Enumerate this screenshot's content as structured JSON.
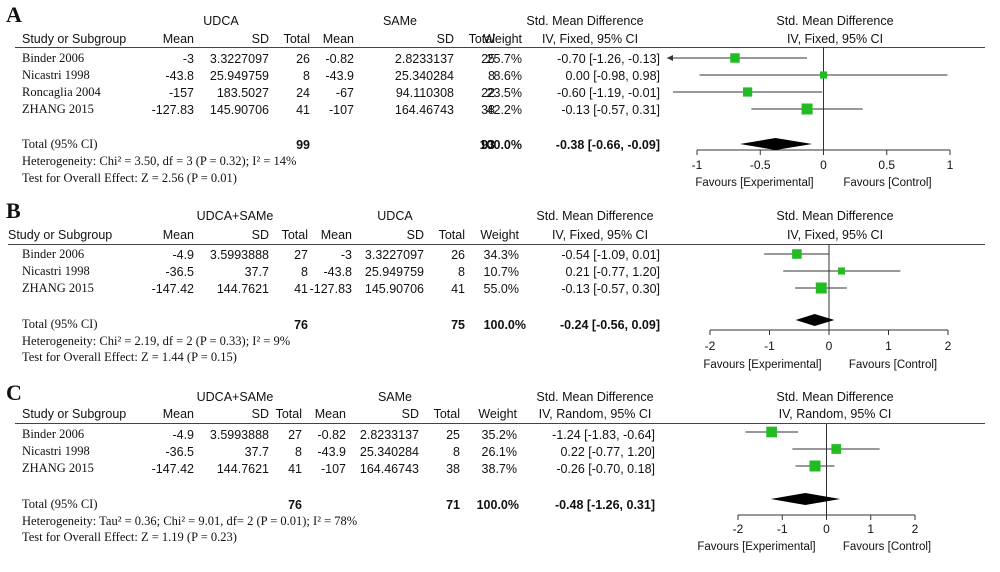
{
  "colors": {
    "square": "#22bb22",
    "diamond": "#000000",
    "line": "#333333"
  },
  "panels": [
    {
      "letter": "A",
      "group1": "UDCA",
      "group2": "SAMe",
      "col_study": "Study or Subgroup",
      "col_mean": "Mean",
      "col_sd": "SD",
      "col_total": "Total",
      "col_weight": "Weight",
      "smd_title": "Std. Mean Difference",
      "smd_method": "IV, Fixed, 95% CI",
      "plot_title": "Std. Mean Difference",
      "plot_method": "IV, Fixed, 95% CI",
      "studies": [
        {
          "name": "Binder 2006",
          "m1": "-3",
          "sd1": "3.3227097",
          "n1": "26",
          "m2": "-0.82",
          "sd2": "2.8233137",
          "n2": "25",
          "weight": "25.7%",
          "ci": "-0.70 [-1.26, -0.13]"
        },
        {
          "name": "Nicastri 1998",
          "m1": "-43.8",
          "sd1": "25.949759",
          "n1": "8",
          "m2": "-43.9",
          "sd2": "25.340284",
          "n2": "8",
          "weight": "8.6%",
          "ci": "0.00 [-0.98, 0.98]"
        },
        {
          "name": "Roncaglia 2004",
          "m1": "-157",
          "sd1": "183.5027",
          "n1": "24",
          "m2": "-67",
          "sd2": "94.110308",
          "n2": "22",
          "weight": "23.5%",
          "ci": "-0.60 [-1.19, -0.01]"
        },
        {
          "name": "ZHANG 2015",
          "m1": "-127.83",
          "sd1": "145.90706",
          "n1": "41",
          "m2": "-107",
          "sd2": "164.46743",
          "n2": "38",
          "weight": "42.2%",
          "ci": "-0.13 [-0.57, 0.31]"
        }
      ],
      "total_label": "Total (95% CI)",
      "total_n1": "99",
      "total_n2": "93",
      "total_weight": "100.0%",
      "total_ci": "-0.38 [-0.66, -0.09]",
      "heterogeneity": "Heterogeneity: Chi² = 3.50, df = 3 (P = 0.32); I² = 14%",
      "overall": "Test for Overall Effect: Z = 2.56 (P = 0.01)",
      "favours_left": "Favours [Experimental]",
      "favours_right": "Favours [Control]"
    },
    {
      "letter": "B",
      "group1": "UDCA+SAMe",
      "group2": "UDCA",
      "col_study": "Study or Subgroup",
      "col_mean": "Mean",
      "col_sd": "SD",
      "col_total": "Total",
      "col_weight": "Weight",
      "smd_title": "Std. Mean Difference",
      "smd_method": "IV, Fixed, 95% CI",
      "plot_title": "Std. Mean Difference",
      "plot_method": "IV, Fixed, 95% CI",
      "studies": [
        {
          "name": "Binder 2006",
          "m1": "-4.9",
          "sd1": "3.5993888",
          "n1": "27",
          "m2": "-3",
          "sd2": "3.3227097",
          "n2": "26",
          "weight": "34.3%",
          "ci": "-0.54 [-1.09, 0.01]"
        },
        {
          "name": "Nicastri 1998",
          "m1": "-36.5",
          "sd1": "37.7",
          "n1": "8",
          "m2": "-43.8",
          "sd2": "25.949759",
          "n2": "8",
          "weight": "10.7%",
          "ci": "0.21 [-0.77, 1.20]"
        },
        {
          "name": "ZHANG 2015",
          "m1": "-147.42",
          "sd1": "144.7621",
          "n1": "41",
          "m2": "-127.83",
          "sd2": "145.90706",
          "n2": "41",
          "weight": "55.0%",
          "ci": "-0.13 [-0.57, 0.30]"
        }
      ],
      "total_label": "Total (95% CI)",
      "total_n1": "76",
      "total_n2": "75",
      "total_weight": "100.0%",
      "total_ci": "-0.24 [-0.56, 0.09]",
      "heterogeneity": "Heterogeneity: Chi² = 2.19, df = 2 (P = 0.33); I² = 9%",
      "overall": "Test for Overall Effect: Z = 1.44 (P = 0.15)",
      "favours_left": "Favours [Experimental]",
      "favours_right": "Favours [Control]"
    },
    {
      "letter": "C",
      "group1": "UDCA+SAMe",
      "group2": "SAMe",
      "col_study": "Study or Subgroup",
      "col_mean": "Mean",
      "col_sd": "SD",
      "col_total": "Total",
      "col_weight": "Weight",
      "smd_title": "Std. Mean Difference",
      "smd_method": "IV, Random, 95% CI",
      "plot_title": "Std. Mean Difference",
      "plot_method": "IV, Random, 95% CI",
      "studies": [
        {
          "name": "Binder 2006",
          "m1": "-4.9",
          "sd1": "3.5993888",
          "n1": "27",
          "m2": "-0.82",
          "sd2": "2.8233137",
          "n2": "25",
          "weight": "35.2%",
          "ci": "-1.24 [-1.83, -0.64]"
        },
        {
          "name": "Nicastri 1998",
          "m1": "-36.5",
          "sd1": "37.7",
          "n1": "8",
          "m2": "-43.9",
          "sd2": "25.340284",
          "n2": "8",
          "weight": "26.1%",
          "ci": "0.22 [-0.77, 1.20]"
        },
        {
          "name": "ZHANG 2015",
          "m1": "-147.42",
          "sd1": "144.7621",
          "n1": "41",
          "m2": "-107",
          "sd2": "164.46743",
          "n2": "38",
          "weight": "38.7%",
          "ci": "-0.26 [-0.70, 0.18]"
        }
      ],
      "total_label": "Total (95% CI)",
      "total_n1": "76",
      "total_n2": "71",
      "total_weight": "100.0%",
      "total_ci": "-0.48 [-1.26, 0.31]",
      "heterogeneity": "Heterogeneity: Tau² = 0.36; Chi² = 9.01, df= 2 (P = 0.01); I² = 78%",
      "overall": "Test for Overall Effect: Z = 1.19 (P = 0.23)",
      "favours_left": "Favours [Experimental]",
      "favours_right": "Favours [Control]"
    }
  ],
  "chart_data": [
    {
      "type": "forest",
      "xlim": [
        -1,
        1
      ],
      "ticks": [
        -1,
        -0.5,
        0,
        0.5,
        1
      ],
      "tick_labels": [
        "-1",
        "-0.5",
        "0",
        "0.5",
        "1"
      ],
      "studies": [
        {
          "name": "Binder 2006",
          "smd": -0.7,
          "lo": -1.26,
          "hi": -0.13,
          "weight": 25.7
        },
        {
          "name": "Nicastri 1998",
          "smd": 0.0,
          "lo": -0.98,
          "hi": 0.98,
          "weight": 8.6
        },
        {
          "name": "Roncaglia 2004",
          "smd": -0.6,
          "lo": -1.19,
          "hi": -0.01,
          "weight": 23.5
        },
        {
          "name": "ZHANG 2015",
          "smd": -0.13,
          "lo": -0.57,
          "hi": 0.31,
          "weight": 42.2
        }
      ],
      "total": {
        "smd": -0.38,
        "lo": -0.66,
        "hi": -0.09
      }
    },
    {
      "type": "forest",
      "xlim": [
        -2,
        2
      ],
      "ticks": [
        -2,
        -1,
        0,
        1,
        2
      ],
      "tick_labels": [
        "-2",
        "-1",
        "0",
        "1",
        "2"
      ],
      "studies": [
        {
          "name": "Binder 2006",
          "smd": -0.54,
          "lo": -1.09,
          "hi": 0.01,
          "weight": 34.3
        },
        {
          "name": "Nicastri 1998",
          "smd": 0.21,
          "lo": -0.77,
          "hi": 1.2,
          "weight": 10.7
        },
        {
          "name": "ZHANG 2015",
          "smd": -0.13,
          "lo": -0.57,
          "hi": 0.3,
          "weight": 55.0
        }
      ],
      "total": {
        "smd": -0.24,
        "lo": -0.56,
        "hi": 0.09
      }
    },
    {
      "type": "forest",
      "xlim": [
        -2,
        2
      ],
      "ticks": [
        -2,
        -1,
        0,
        1,
        2
      ],
      "tick_labels": [
        "-2",
        "-1",
        "0",
        "1",
        "2"
      ],
      "studies": [
        {
          "name": "Binder 2006",
          "smd": -1.24,
          "lo": -1.83,
          "hi": -0.64,
          "weight": 35.2
        },
        {
          "name": "Nicastri 1998",
          "smd": 0.22,
          "lo": -0.77,
          "hi": 1.2,
          "weight": 26.1
        },
        {
          "name": "ZHANG 2015",
          "smd": -0.26,
          "lo": -0.7,
          "hi": 0.18,
          "weight": 38.7
        }
      ],
      "total": {
        "smd": -0.48,
        "lo": -1.26,
        "hi": 0.31
      }
    }
  ]
}
